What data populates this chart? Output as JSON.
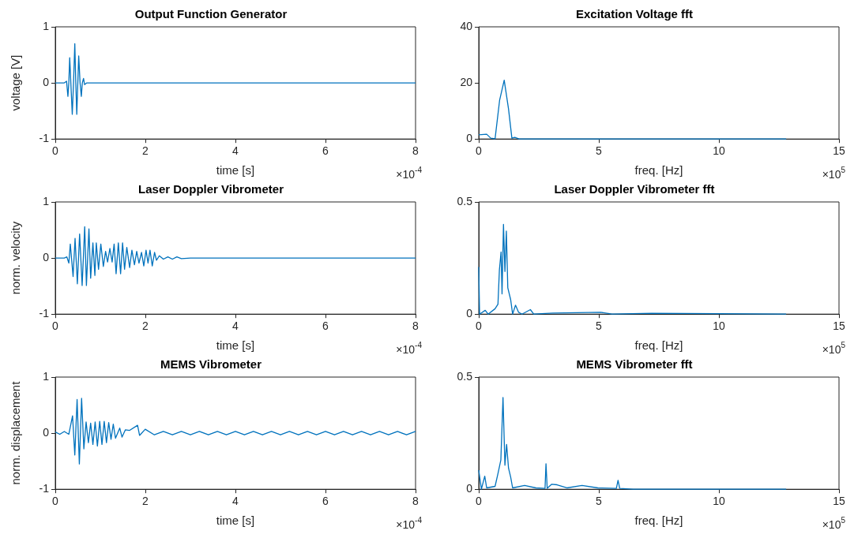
{
  "chart_data": [
    {
      "type": "line",
      "title": "Output Function Generator",
      "xlabel": "time [s]",
      "ylabel": "voltage [V]",
      "color": "#0072bd",
      "xlim": [
        0,
        8
      ],
      "xticks": [
        0,
        2,
        4,
        6,
        8
      ],
      "ylim": [
        -1,
        1
      ],
      "yticks": [
        -1,
        0,
        1
      ],
      "annotations": [
        "×10$^{-4}$"
      ],
      "x": [
        0,
        0.2,
        0.25,
        0.28,
        0.3,
        0.32,
        0.345,
        0.377,
        0.405,
        0.433,
        0.455,
        0.477,
        0.5,
        0.52,
        0.55,
        0.578,
        0.6,
        0.627,
        0.65,
        0.7,
        8
      ],
      "values": [
        0,
        0,
        0.03,
        -0.24,
        0,
        0.45,
        0,
        -0.56,
        0,
        0.7,
        0,
        -0.56,
        0,
        0.48,
        0,
        -0.24,
        0,
        0.08,
        -0.03,
        0,
        0
      ]
    },
    {
      "type": "line",
      "title": "Excitation Voltage fft",
      "xlabel": "freq. [Hz]",
      "color": "#0072bd",
      "xlim": [
        0,
        15
      ],
      "xticks": [
        0,
        5,
        10,
        15
      ],
      "ylim": [
        0,
        40
      ],
      "yticks": [
        0,
        20,
        40
      ],
      "annotations": [
        "×10$^{5}$"
      ],
      "x": [
        0,
        0.33,
        0.5,
        0.68,
        0.87,
        1.06,
        1.24,
        1.38,
        1.5,
        1.68,
        12.8
      ],
      "values": [
        1.5,
        1.7,
        0.3,
        0.1,
        13.9,
        21,
        10.7,
        0.3,
        0.6,
        0,
        0
      ]
    },
    {
      "type": "line",
      "title": "Laser Doppler Vibrometer",
      "xlabel": "time [s]",
      "ylabel": "norm. velocity",
      "color": "#0072bd",
      "xlim": [
        0,
        8
      ],
      "xticks": [
        0,
        2,
        4,
        6,
        8
      ],
      "ylim": [
        -1,
        1
      ],
      "yticks": [
        -1,
        0,
        1
      ],
      "annotations": [
        "×10$^{-4}$"
      ],
      "x": [
        0,
        0.2,
        0.257,
        0.301,
        0.333,
        0.395,
        0.439,
        0.49,
        0.54,
        0.596,
        0.653,
        0.691,
        0.747,
        0.785,
        0.835,
        0.879,
        0.91,
        0.96,
        1.011,
        1.067,
        1.117,
        1.161,
        1.212,
        1.262,
        1.306,
        1.35,
        1.4,
        1.45,
        1.494,
        1.538,
        1.588,
        1.651,
        1.701,
        1.758,
        1.808,
        1.858,
        1.915,
        1.965,
        2.015,
        2.059,
        2.103,
        2.153,
        2.204,
        2.247,
        2.31,
        2.4,
        2.5,
        2.6,
        2.7,
        2.8,
        3.0,
        8
      ],
      "values": [
        0,
        0,
        0.02,
        -0.09,
        0.25,
        -0.33,
        0.35,
        -0.46,
        0.43,
        -0.49,
        0.56,
        -0.49,
        0.52,
        -0.36,
        0.27,
        -0.31,
        0.27,
        -0.2,
        0.25,
        -0.15,
        0.12,
        -0.07,
        0.17,
        -0.07,
        0.25,
        -0.28,
        0.27,
        -0.28,
        0.27,
        -0.2,
        0.19,
        -0.17,
        0.14,
        -0.12,
        0.12,
        -0.09,
        0.1,
        -0.14,
        0.14,
        -0.09,
        0.14,
        -0.14,
        0.1,
        -0.04,
        0.04,
        -0.02,
        0.02,
        -0.02,
        0.02,
        -0.01,
        0,
        0
      ]
    },
    {
      "type": "line",
      "title": "Laser Doppler Vibrometer fft",
      "xlabel": "freq. [Hz]",
      "color": "#0072bd",
      "xlim": [
        0,
        15
      ],
      "xticks": [
        0,
        5,
        10,
        15
      ],
      "ylim": [
        0,
        0.5
      ],
      "yticks": [
        0,
        0.5
      ],
      "annotations": [
        "×10$^{5}$"
      ],
      "x": [
        0,
        0.035,
        0.27,
        0.39,
        0.68,
        0.8,
        0.86,
        0.93,
        0.97,
        1.03,
        1.09,
        1.15,
        1.21,
        1.33,
        1.41,
        1.53,
        1.66,
        1.8,
        2.15,
        2.29,
        3.09,
        5.08,
        5.55,
        7.2,
        12.8
      ],
      "values": [
        0.21,
        0,
        0.017,
        0,
        0.024,
        0.044,
        0.197,
        0.277,
        0.09,
        0.4,
        0.19,
        0.37,
        0.117,
        0.064,
        0,
        0.04,
        0.008,
        0,
        0.02,
        0,
        0.005,
        0.008,
        0,
        0.004,
        0
      ]
    },
    {
      "type": "line",
      "title": "MEMS Vibrometer",
      "xlabel": "time [s]",
      "ylabel": "norm. displacement",
      "color": "#0072bd",
      "xlim": [
        0,
        8
      ],
      "xticks": [
        0,
        2,
        4,
        6,
        8
      ],
      "ylim": [
        -1,
        1
      ],
      "yticks": [
        -1,
        0,
        1
      ],
      "annotations": [
        "×10$^{-4}$"
      ],
      "x": [
        0,
        0.1,
        0.2,
        0.3,
        0.383,
        0.433,
        0.484,
        0.534,
        0.584,
        0.634,
        0.684,
        0.735,
        0.785,
        0.835,
        0.885,
        0.935,
        0.986,
        1.036,
        1.086,
        1.136,
        1.186,
        1.237,
        1.287,
        1.337,
        1.431,
        1.482,
        1.557,
        1.651,
        1.827,
        1.871,
        1.997,
        2.2,
        2.4,
        2.6,
        2.8,
        3.0,
        3.2,
        3.4,
        3.6,
        3.8,
        4.0,
        4.2,
        4.4,
        4.6,
        4.8,
        5.0,
        5.2,
        5.4,
        5.6,
        5.8,
        6.0,
        6.2,
        6.4,
        6.6,
        6.8,
        7.0,
        7.2,
        7.4,
        7.6,
        7.8,
        8.0
      ],
      "values": [
        0.02,
        -0.02,
        0.03,
        -0.02,
        0.31,
        -0.39,
        0.6,
        -0.55,
        0.62,
        -0.28,
        0.2,
        -0.17,
        0.18,
        -0.2,
        0.2,
        -0.23,
        0.21,
        -0.2,
        0.21,
        -0.17,
        0.19,
        -0.11,
        0.16,
        -0.09,
        0.09,
        -0.07,
        0.06,
        0.05,
        0.14,
        -0.04,
        0.07,
        -0.03,
        0.03,
        -0.03,
        0.03,
        -0.03,
        0.03,
        -0.03,
        0.03,
        -0.03,
        0.03,
        -0.03,
        0.03,
        -0.03,
        0.03,
        -0.03,
        0.03,
        -0.03,
        0.03,
        -0.03,
        0.03,
        -0.03,
        0.03,
        -0.03,
        0.03,
        -0.03,
        0.03,
        -0.03,
        0.03,
        -0.03,
        0.03
      ]
    },
    {
      "type": "line",
      "title": "MEMS Vibrometer fft",
      "xlabel": "freq. [Hz]",
      "color": "#0072bd",
      "xlim": [
        0,
        15
      ],
      "xticks": [
        0,
        5,
        10,
        15
      ],
      "ylim": [
        0,
        0.5
      ],
      "yticks": [
        0,
        0.5
      ],
      "annotations": [
        "×10$^{5}$"
      ],
      "x": [
        0,
        0.11,
        0.25,
        0.33,
        0.68,
        0.8,
        0.92,
        1.01,
        1.09,
        1.16,
        1.24,
        1.33,
        1.41,
        1.91,
        2.38,
        2.76,
        2.8,
        2.85,
        3.03,
        3.26,
        3.67,
        4.3,
        4.96,
        5.73,
        5.8,
        5.87,
        6.43,
        12.8
      ],
      "values": [
        0.085,
        0,
        0.058,
        0.006,
        0.013,
        0.07,
        0.13,
        0.409,
        0.107,
        0.2,
        0.094,
        0.054,
        0.006,
        0.017,
        0.006,
        0.004,
        0.114,
        0.004,
        0.022,
        0.02,
        0.006,
        0.017,
        0.006,
        0.004,
        0.04,
        0.004,
        0,
        0
      ]
    }
  ]
}
